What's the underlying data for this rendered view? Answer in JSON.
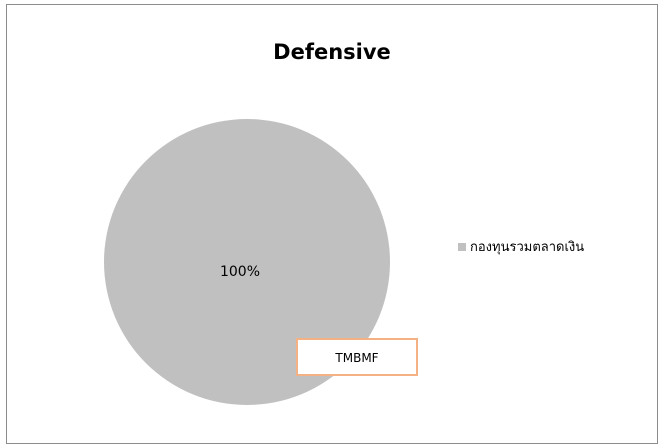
{
  "chart_data": {
    "type": "pie",
    "title": "Defensive",
    "slices": [
      {
        "label": "กองทุนรวมตลาดเงิน",
        "value": 100,
        "percent_label": "100%",
        "color": "#c0c0c0"
      }
    ],
    "annotation": {
      "text": "TMBMF",
      "border_color": "#f4b183"
    },
    "legend_position": "right"
  }
}
